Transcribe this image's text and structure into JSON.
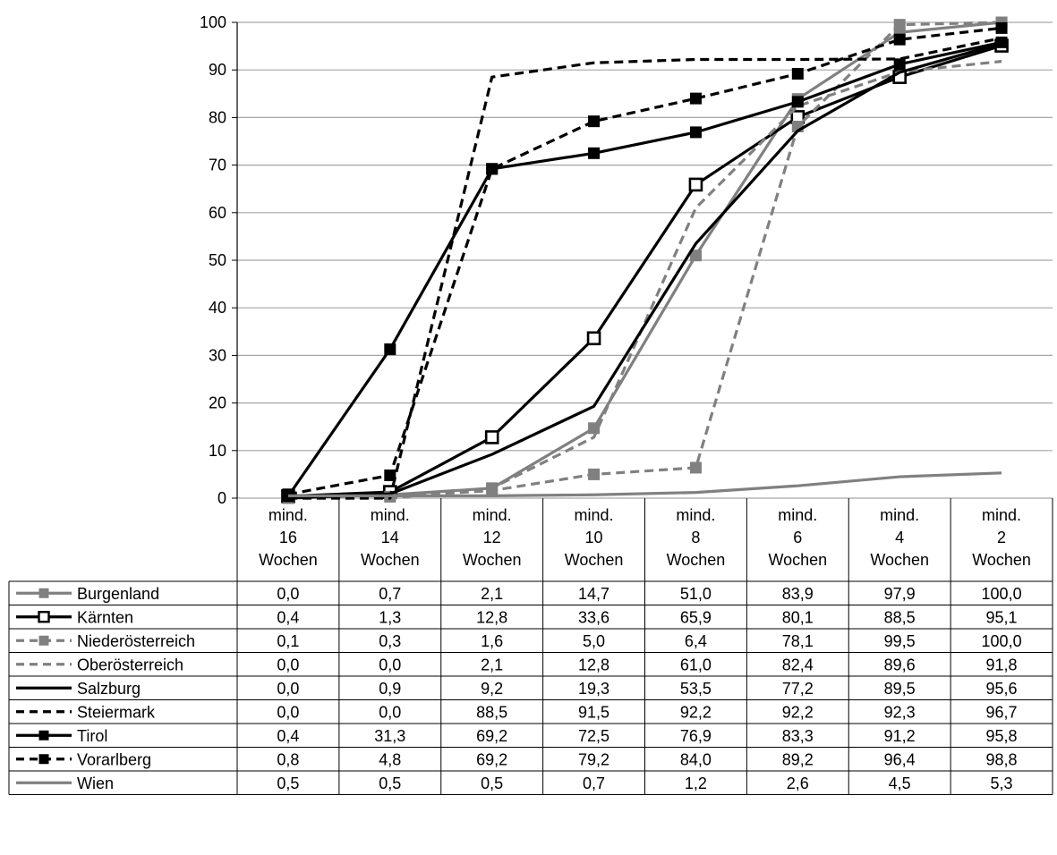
{
  "chart_data": {
    "type": "line",
    "title": "",
    "xlabel": "",
    "ylabel": "",
    "ylim": [
      0,
      100
    ],
    "yticks": [
      0,
      10,
      20,
      30,
      40,
      50,
      60,
      70,
      80,
      90,
      100
    ],
    "grid": "horizontal",
    "legend": "data-table-below",
    "categories": [
      [
        "mind.",
        "16",
        "Wochen"
      ],
      [
        "mind.",
        "14",
        "Wochen"
      ],
      [
        "mind.",
        "12",
        "Wochen"
      ],
      [
        "mind.",
        "10",
        "Wochen"
      ],
      [
        "mind.",
        "8",
        "Wochen"
      ],
      [
        "mind.",
        "6",
        "Wochen"
      ],
      [
        "mind.",
        "4",
        "Wochen"
      ],
      [
        "mind.",
        "2",
        "Wochen"
      ]
    ],
    "series": [
      {
        "name": "Burgenland",
        "color": "#808080",
        "dash": "solid",
        "marker": "filled-square",
        "values": [
          0.0,
          0.7,
          2.1,
          14.7,
          51.0,
          83.9,
          97.9,
          100.0
        ],
        "labels": [
          "0,0",
          "0,7",
          "2,1",
          "14,7",
          "51,0",
          "83,9",
          "97,9",
          "100,0"
        ]
      },
      {
        "name": "Kärnten",
        "color": "#000000",
        "dash": "solid",
        "marker": "open-square",
        "values": [
          0.4,
          1.3,
          12.8,
          33.6,
          65.9,
          80.1,
          88.5,
          95.1
        ],
        "labels": [
          "0,4",
          "1,3",
          "12,8",
          "33,6",
          "65,9",
          "80,1",
          "88,5",
          "95,1"
        ]
      },
      {
        "name": "Niederösterreich",
        "color": "#808080",
        "dash": "dashed",
        "marker": "filled-square",
        "values": [
          0.1,
          0.3,
          1.6,
          5.0,
          6.4,
          78.1,
          99.5,
          100.0
        ],
        "labels": [
          "0,1",
          "0,3",
          "1,6",
          "5,0",
          "6,4",
          "78,1",
          "99,5",
          "100,0"
        ]
      },
      {
        "name": "Oberösterreich",
        "color": "#808080",
        "dash": "dashed",
        "marker": "none",
        "values": [
          0.0,
          0.0,
          2.1,
          12.8,
          61.0,
          82.4,
          89.6,
          91.8
        ],
        "labels": [
          "0,0",
          "0,0",
          "2,1",
          "12,8",
          "61,0",
          "82,4",
          "89,6",
          "91,8"
        ]
      },
      {
        "name": "Salzburg",
        "color": "#000000",
        "dash": "solid",
        "marker": "none",
        "values": [
          0.0,
          0.9,
          9.2,
          19.3,
          53.5,
          77.2,
          89.5,
          95.6
        ],
        "labels": [
          "0,0",
          "0,9",
          "9,2",
          "19,3",
          "53,5",
          "77,2",
          "89,5",
          "95,6"
        ]
      },
      {
        "name": "Steiermark",
        "color": "#000000",
        "dash": "dashed",
        "marker": "none",
        "values": [
          0.0,
          0.0,
          88.5,
          91.5,
          92.2,
          92.2,
          92.3,
          96.7
        ],
        "labels": [
          "0,0",
          "0,0",
          "88,5",
          "91,5",
          "92,2",
          "92,2",
          "92,3",
          "96,7"
        ]
      },
      {
        "name": "Tirol",
        "color": "#000000",
        "dash": "solid",
        "marker": "filled-square",
        "values": [
          0.4,
          31.3,
          69.2,
          72.5,
          76.9,
          83.3,
          91.2,
          95.8
        ],
        "labels": [
          "0,4",
          "31,3",
          "69,2",
          "72,5",
          "76,9",
          "83,3",
          "91,2",
          "95,8"
        ]
      },
      {
        "name": "Vorarlberg",
        "color": "#000000",
        "dash": "dashed",
        "marker": "filled-square",
        "values": [
          0.8,
          4.8,
          69.2,
          79.2,
          84.0,
          89.2,
          96.4,
          98.8
        ],
        "labels": [
          "0,8",
          "4,8",
          "69,2",
          "79,2",
          "84,0",
          "89,2",
          "96,4",
          "98,8"
        ]
      },
      {
        "name": "Wien",
        "color": "#808080",
        "dash": "solid",
        "marker": "none",
        "values": [
          0.5,
          0.5,
          0.5,
          0.7,
          1.2,
          2.6,
          4.5,
          5.3
        ],
        "labels": [
          "0,5",
          "0,5",
          "0,5",
          "0,7",
          "1,2",
          "2,6",
          "4,5",
          "5,3"
        ]
      }
    ]
  }
}
